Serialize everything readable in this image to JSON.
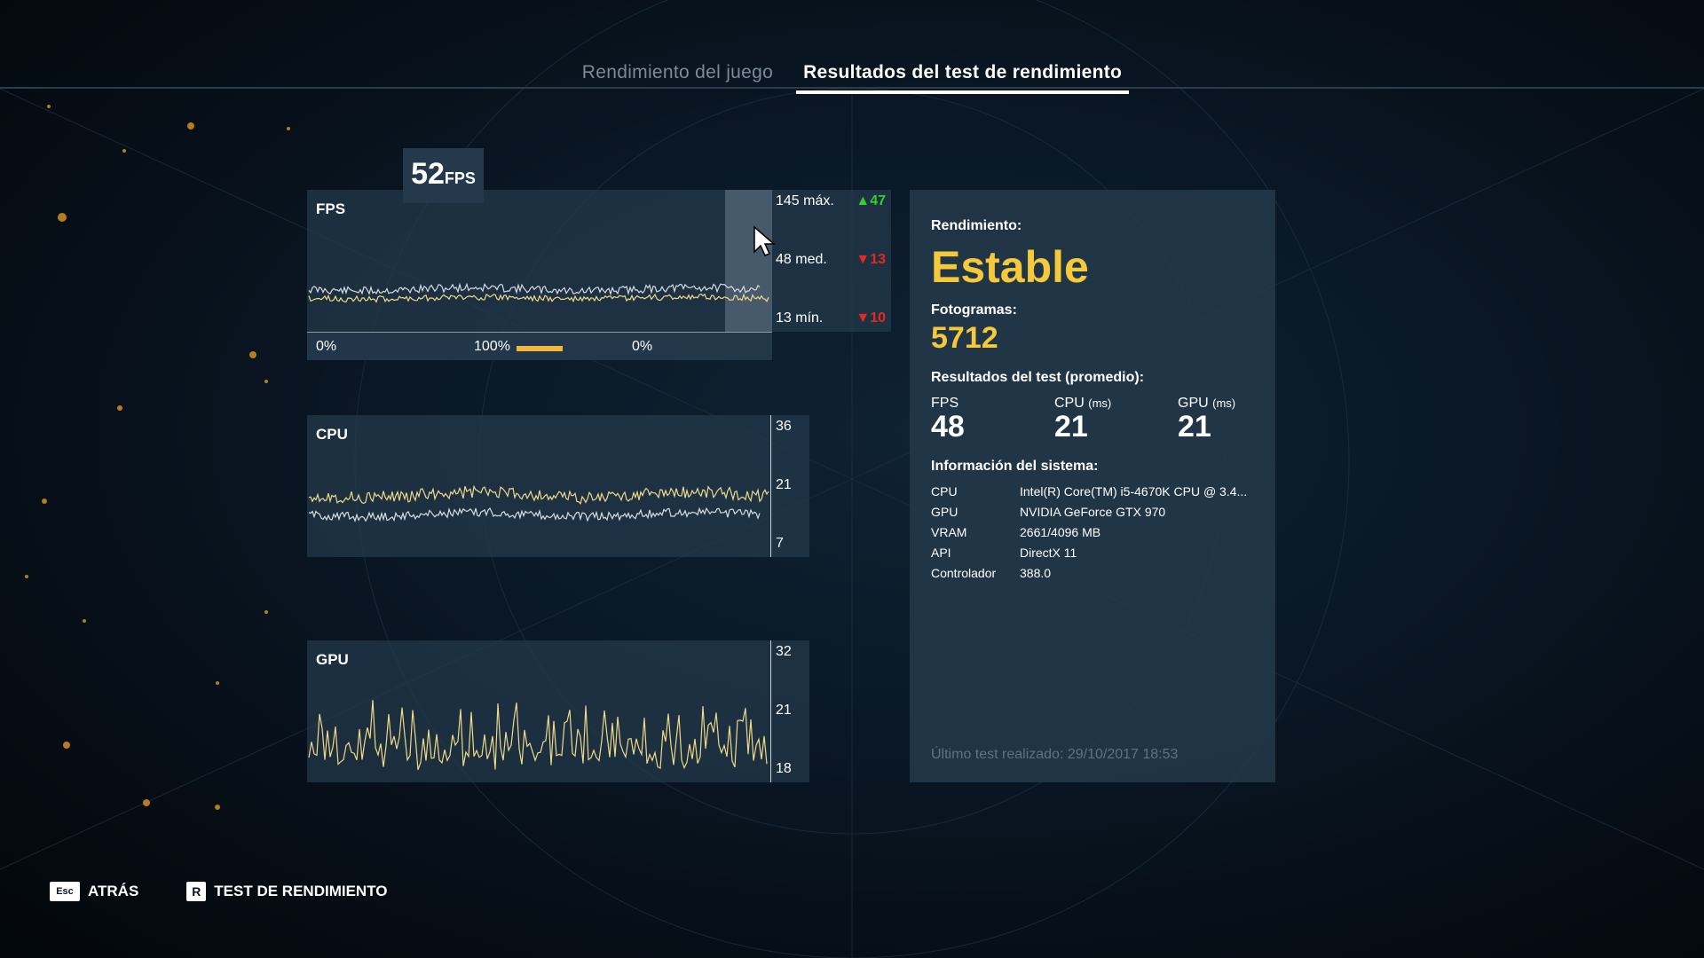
{
  "tabs": [
    {
      "label": "Rendimiento del juego",
      "active": false
    },
    {
      "label": "Resultados del test de rendimiento",
      "active": true
    }
  ],
  "fps_panel": {
    "title": "FPS",
    "current_value": "52",
    "current_unit": "FPS",
    "max": {
      "label": "145 máx.",
      "delta": "47",
      "direction": "up"
    },
    "avg": {
      "label": "48 med.",
      "delta": "13",
      "direction": "down"
    },
    "min": {
      "label": "13 mín.",
      "delta": "10",
      "direction": "down"
    },
    "percent_left": "0%",
    "percent_mid": "100%",
    "percent_right": "0%",
    "percent_mid_fill": 1.0
  },
  "cpu_panel": {
    "title": "CPU",
    "scale_top": "36",
    "scale_mid": "21",
    "scale_bottom": "7"
  },
  "gpu_panel": {
    "title": "GPU",
    "scale_top": "32",
    "scale_mid": "21",
    "scale_bottom": "18"
  },
  "results": {
    "performance_label": "Rendimiento:",
    "performance_value": "Estable",
    "frames_label": "Fotogramas:",
    "frames_value": "5712",
    "averages_label": "Resultados del test (promedio):",
    "averages": [
      {
        "name": "FPS",
        "unit": "",
        "value": "48"
      },
      {
        "name": "CPU",
        "unit": "(ms)",
        "value": "21"
      },
      {
        "name": "GPU",
        "unit": "(ms)",
        "value": "21"
      }
    ],
    "system_label": "Información del sistema:",
    "system": [
      {
        "key": "CPU",
        "value": "Intel(R) Core(TM) i5-4670K CPU @ 3.4..."
      },
      {
        "key": "GPU",
        "value": "NVIDIA GeForce GTX 970"
      },
      {
        "key": "VRAM",
        "value": "2661/4096 MB"
      },
      {
        "key": "API",
        "value": "DirectX 11"
      },
      {
        "key": "Controlador",
        "value": "388.0"
      }
    ],
    "last_test": "Último test realizado: 29/10/2017 18:53"
  },
  "footer": {
    "back_key": "Esc",
    "back_label": "ATRÁS",
    "bench_key": "R",
    "bench_label": "TEST DE RENDIMIENTO"
  },
  "colors": {
    "accent_yellow": "#f5c93a",
    "line_yellow": "#f0d98a",
    "line_white": "#d6dde2",
    "panel": "#243a4c",
    "up_green": "#2fd12f",
    "down_red": "#e8281e"
  }
}
